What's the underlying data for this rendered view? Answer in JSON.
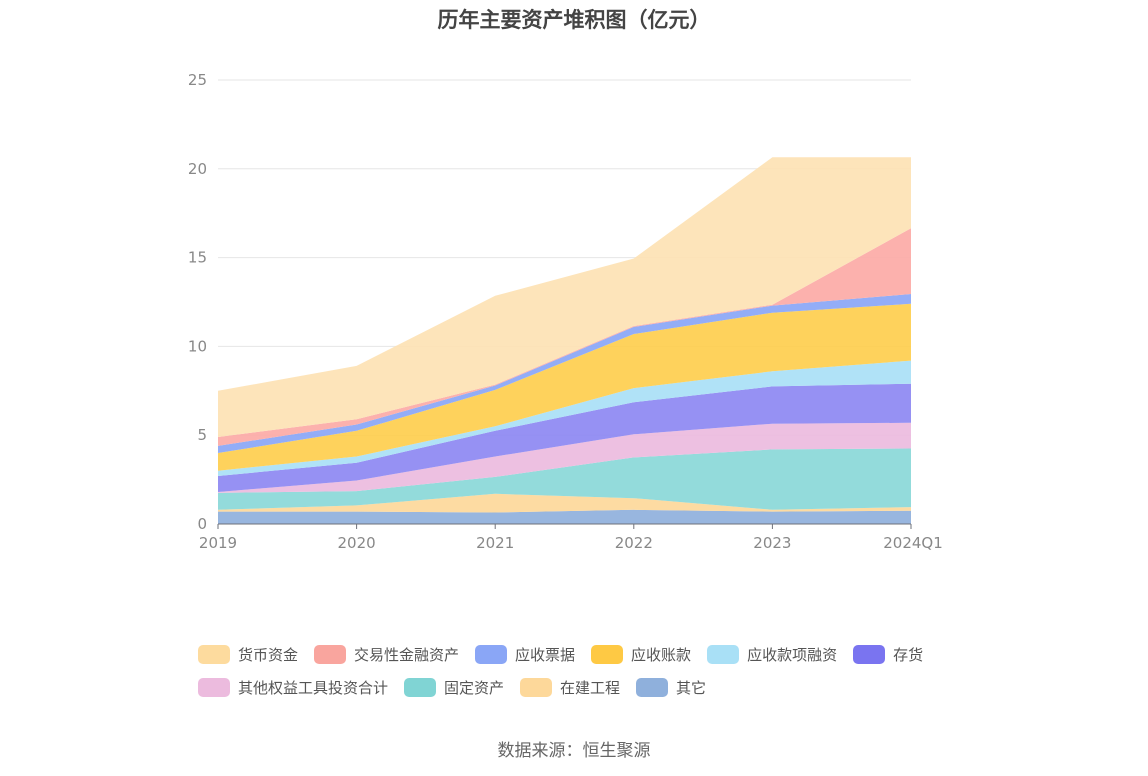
{
  "chart_data": {
    "type": "area",
    "stacked": true,
    "title": "历年主要资产堆积图（亿元）",
    "xlabel": "",
    "ylabel": "",
    "categories": [
      "2019",
      "2020",
      "2021",
      "2022",
      "2023",
      "2024Q1"
    ],
    "ylim": [
      0,
      25
    ],
    "yticks": [
      0,
      5,
      10,
      15,
      20,
      25
    ],
    "grid": true,
    "legend_position": "bottom",
    "series": [
      {
        "name": "其它",
        "color": "#8fb0dc",
        "values": [
          0.7,
          0.7,
          0.65,
          0.8,
          0.7,
          0.75
        ]
      },
      {
        "name": "在建工程",
        "color": "#fdd89a",
        "values": [
          0.1,
          0.35,
          1.05,
          0.65,
          0.1,
          0.2
        ]
      },
      {
        "name": "固定资产",
        "color": "#8ad8d8",
        "values": [
          0.95,
          0.8,
          0.95,
          2.3,
          3.4,
          3.3
        ]
      },
      {
        "name": "其他权益工具投资合计",
        "color": "#ecbbde",
        "values": [
          0.05,
          0.6,
          1.15,
          1.3,
          1.45,
          1.45
        ]
      },
      {
        "name": "存货",
        "color": "#8d88f2",
        "values": [
          0.9,
          1.0,
          1.45,
          1.8,
          2.1,
          2.2
        ]
      },
      {
        "name": "应收款项融资",
        "color": "#a9e0f6",
        "values": [
          0.3,
          0.35,
          0.25,
          0.8,
          0.85,
          1.3
        ]
      },
      {
        "name": "应收账款",
        "color": "#fece4e",
        "values": [
          1.0,
          1.45,
          2.05,
          3.05,
          3.3,
          3.2
        ]
      },
      {
        "name": "应收票据",
        "color": "#8aa6f6",
        "values": [
          0.4,
          0.35,
          0.25,
          0.4,
          0.4,
          0.55
        ]
      },
      {
        "name": "交易性金融资产",
        "color": "#fcaaa6",
        "values": [
          0.5,
          0.3,
          0.05,
          0.05,
          0.05,
          3.7
        ]
      },
      {
        "name": "货币资金",
        "color": "#fde2b4",
        "values": [
          2.6,
          3.0,
          5.0,
          3.8,
          8.3,
          4.0
        ]
      }
    ],
    "legend_order": [
      "货币资金",
      "交易性金融资产",
      "应收票据",
      "应收账款",
      "应收款项融资",
      "存货",
      "其他权益工具投资合计",
      "固定资产",
      "在建工程",
      "其它"
    ],
    "legend_colors": {
      "货币资金": "#fddb9e",
      "交易性金融资产": "#f9a59e",
      "应收票据": "#8aa6f6",
      "应收账款": "#fec944",
      "应收款项融资": "#a9e0f6",
      "存货": "#7a74f0",
      "其他权益工具投资合计": "#ecbbde",
      "固定资产": "#80d4d4",
      "在建工程": "#fdd89a",
      "其它": "#8fb0dc"
    }
  },
  "source": "数据来源：恒生聚源"
}
